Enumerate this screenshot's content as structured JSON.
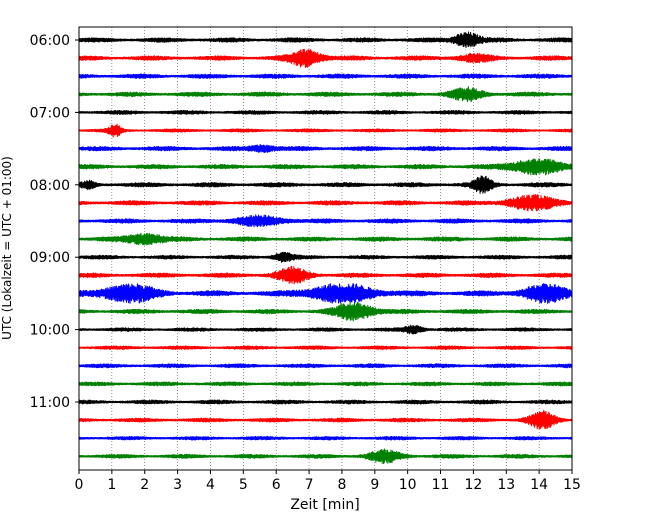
{
  "chart_data": {
    "type": "line",
    "title": "",
    "xlabel": "Zeit  [min]",
    "ylabel": "UTC (Lokalzeit = UTC + 01:00)",
    "xlim": [
      0,
      15
    ],
    "x_ticks": [
      "0",
      "1",
      "2",
      "3",
      "4",
      "5",
      "6",
      "7",
      "8",
      "9",
      "10",
      "11",
      "12",
      "13",
      "14",
      "15"
    ],
    "y_ticks": [
      "06:00",
      "07:00",
      "08:00",
      "09:00",
      "10:00",
      "11:00"
    ],
    "grid": "vertical dotted lines at each minute",
    "row_minutes": 15,
    "trace_colors": [
      "#000000",
      "#ff0000",
      "#0000ff",
      "#008000"
    ],
    "series": [
      {
        "start": "06:00",
        "color": "#000000",
        "base_amplitude": 0.25,
        "events": [
          {
            "t": 11.8,
            "amp": 0.8,
            "width": 0.4
          }
        ]
      },
      {
        "start": "06:15",
        "color": "#ff0000",
        "base_amplitude": 0.25,
        "events": [
          {
            "t": 6.9,
            "amp": 0.9,
            "width": 0.5
          },
          {
            "t": 12.0,
            "amp": 0.35,
            "width": 0.5
          }
        ]
      },
      {
        "start": "06:30",
        "color": "#0000ff",
        "base_amplitude": 0.25,
        "events": []
      },
      {
        "start": "06:45",
        "color": "#008000",
        "base_amplitude": 0.25,
        "events": [
          {
            "t": 11.8,
            "amp": 0.6,
            "width": 0.5
          }
        ]
      },
      {
        "start": "07:00",
        "color": "#000000",
        "base_amplitude": 0.22,
        "events": []
      },
      {
        "start": "07:15",
        "color": "#ff0000",
        "base_amplitude": 0.18,
        "events": [
          {
            "t": 1.1,
            "amp": 0.6,
            "width": 0.2
          }
        ]
      },
      {
        "start": "07:30",
        "color": "#0000ff",
        "base_amplitude": 0.25,
        "events": [
          {
            "t": 5.6,
            "amp": 0.35,
            "width": 0.4
          }
        ]
      },
      {
        "start": "07:45",
        "color": "#008000",
        "base_amplitude": 0.25,
        "events": [
          {
            "t": 13.9,
            "amp": 0.8,
            "width": 0.8
          }
        ]
      },
      {
        "start": "08:00",
        "color": "#000000",
        "base_amplitude": 0.25,
        "events": [
          {
            "t": 0.3,
            "amp": 0.35,
            "width": 0.2
          },
          {
            "t": 12.3,
            "amp": 0.8,
            "width": 0.3
          }
        ]
      },
      {
        "start": "08:15",
        "color": "#ff0000",
        "base_amplitude": 0.25,
        "events": [
          {
            "t": 13.8,
            "amp": 0.7,
            "width": 0.8
          }
        ]
      },
      {
        "start": "08:30",
        "color": "#0000ff",
        "base_amplitude": 0.25,
        "events": [
          {
            "t": 5.5,
            "amp": 0.45,
            "width": 0.8
          }
        ]
      },
      {
        "start": "08:45",
        "color": "#008000",
        "base_amplitude": 0.25,
        "events": [
          {
            "t": 2.0,
            "amp": 0.55,
            "width": 0.6
          }
        ]
      },
      {
        "start": "09:00",
        "color": "#000000",
        "base_amplitude": 0.22,
        "events": [
          {
            "t": 6.2,
            "amp": 0.45,
            "width": 0.3
          }
        ]
      },
      {
        "start": "09:15",
        "color": "#ff0000",
        "base_amplitude": 0.25,
        "events": [
          {
            "t": 6.5,
            "amp": 0.75,
            "width": 0.5
          }
        ]
      },
      {
        "start": "09:30",
        "color": "#0000ff",
        "base_amplitude": 0.3,
        "events": [
          {
            "t": 1.5,
            "amp": 0.95,
            "width": 0.8
          },
          {
            "t": 8.0,
            "amp": 1.0,
            "width": 1.0
          },
          {
            "t": 14.2,
            "amp": 0.9,
            "width": 0.7
          }
        ]
      },
      {
        "start": "09:45",
        "color": "#008000",
        "base_amplitude": 0.25,
        "events": [
          {
            "t": 8.4,
            "amp": 0.9,
            "width": 0.6
          }
        ]
      },
      {
        "start": "10:00",
        "color": "#000000",
        "base_amplitude": 0.2,
        "events": [
          {
            "t": 10.2,
            "amp": 0.4,
            "width": 0.3
          }
        ]
      },
      {
        "start": "10:15",
        "color": "#ff0000",
        "base_amplitude": 0.2,
        "events": []
      },
      {
        "start": "10:30",
        "color": "#0000ff",
        "base_amplitude": 0.22,
        "events": []
      },
      {
        "start": "10:45",
        "color": "#008000",
        "base_amplitude": 0.22,
        "events": []
      },
      {
        "start": "11:00",
        "color": "#000000",
        "base_amplitude": 0.22,
        "events": []
      },
      {
        "start": "11:15",
        "color": "#ff0000",
        "base_amplitude": 0.22,
        "events": [
          {
            "t": 14.1,
            "amp": 0.9,
            "width": 0.4
          }
        ]
      },
      {
        "start": "11:30",
        "color": "#0000ff",
        "base_amplitude": 0.2,
        "events": []
      },
      {
        "start": "11:45",
        "color": "#008000",
        "base_amplitude": 0.22,
        "events": [
          {
            "t": 9.3,
            "amp": 0.6,
            "width": 0.5
          }
        ]
      }
    ]
  }
}
